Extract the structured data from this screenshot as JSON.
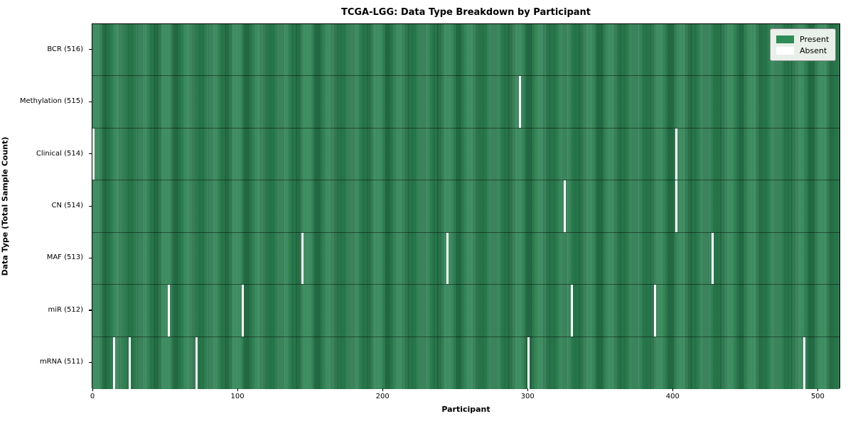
{
  "title": "TCGA-LGG: Data Type Breakdown by Participant",
  "xlabel": "Participant",
  "ylabel": "Data Type (Total Sample Count)",
  "colors": {
    "present": "#2e8b57",
    "absent": "#ffffff",
    "cell_edge": "#1d5c3a",
    "legend_background": "#e9efe9"
  },
  "chart_data": {
    "type": "heatmap",
    "title": "TCGA-LGG: Data Type Breakdown by Participant",
    "xlabel": "Participant",
    "ylabel": "Data Type (Total Sample Count)",
    "x_ticks": [
      0,
      100,
      200,
      300,
      400,
      500
    ],
    "x_range": [
      0,
      516
    ],
    "n_participants": 516,
    "grid": false,
    "legend_position": "upper right",
    "legend": [
      {
        "label": "Present",
        "color": "#2e8b57"
      },
      {
        "label": "Absent",
        "color": "#ffffff"
      }
    ],
    "rows": [
      {
        "label": "BCR (516)",
        "data_type": "BCR",
        "total": 516,
        "absent_participants": []
      },
      {
        "label": "Methylation (515)",
        "data_type": "Methylation",
        "total": 515,
        "absent_participants": [
          294
        ]
      },
      {
        "label": "Clinical (514)",
        "data_type": "Clinical",
        "total": 514,
        "absent_participants": [
          0,
          402
        ]
      },
      {
        "label": "CN (514)",
        "data_type": "CN",
        "total": 514,
        "absent_participants": [
          325,
          402
        ]
      },
      {
        "label": "MAF (513)",
        "data_type": "MAF",
        "total": 513,
        "absent_participants": [
          144,
          244,
          427
        ]
      },
      {
        "label": "miR (512)",
        "data_type": "miR",
        "total": 512,
        "absent_participants": [
          52,
          103,
          330,
          387
        ]
      },
      {
        "label": "mRNA (511)",
        "data_type": "mRNA",
        "total": 511,
        "absent_participants": [
          14,
          25,
          71,
          300,
          490
        ]
      }
    ]
  }
}
